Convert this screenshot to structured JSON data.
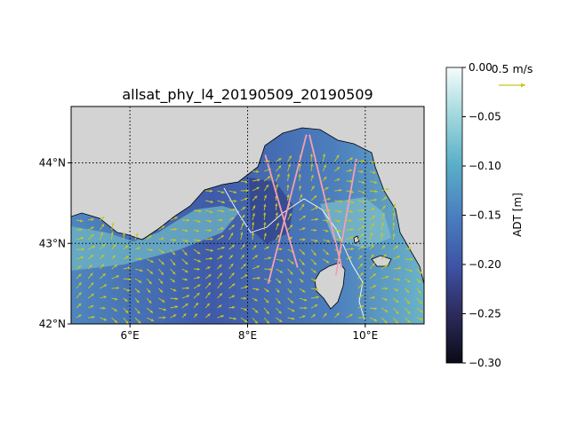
{
  "title": "allsat_phy_l4_20190509_20190509",
  "lon_ticks": [
    {
      "value": 6,
      "label": "6°E"
    },
    {
      "value": 8,
      "label": "8°E"
    },
    {
      "value": 10,
      "label": "10°E"
    }
  ],
  "lat_ticks": [
    {
      "value": 42,
      "label": "42°N"
    },
    {
      "value": 43,
      "label": "43°N"
    },
    {
      "value": 44,
      "label": "44°N"
    }
  ],
  "map_extent": {
    "lon": [
      5.0,
      11.0
    ],
    "lat": [
      42.0,
      44.7
    ]
  },
  "colorbar": {
    "label": "ADT [m]",
    "range": [
      -0.3,
      0.0
    ],
    "ticks": [
      {
        "value": 0.0,
        "label": "0.00"
      },
      {
        "value": -0.05,
        "label": "−0.05"
      },
      {
        "value": -0.1,
        "label": "−0.10"
      },
      {
        "value": -0.15,
        "label": "−0.15"
      },
      {
        "value": -0.2,
        "label": "−0.20"
      },
      {
        "value": -0.25,
        "label": "−0.25"
      },
      {
        "value": -0.3,
        "label": "−0.30"
      }
    ]
  },
  "quiver_key": {
    "label": "0.5 m/s",
    "speed": 0.5
  },
  "colors": {
    "land": "#d3d3d3",
    "arrows": "#c8c81e",
    "tracks": "#f4a0b0",
    "contour": "#ffffff"
  },
  "tracks": [
    [
      [
        8.3,
        44.1
      ],
      [
        8.85,
        42.7
      ]
    ],
    [
      [
        8.35,
        42.5
      ],
      [
        9.0,
        44.35
      ]
    ],
    [
      [
        9.05,
        44.35
      ],
      [
        9.6,
        42.7
      ]
    ],
    [
      [
        9.5,
        42.6
      ],
      [
        9.85,
        44.05
      ]
    ]
  ]
}
